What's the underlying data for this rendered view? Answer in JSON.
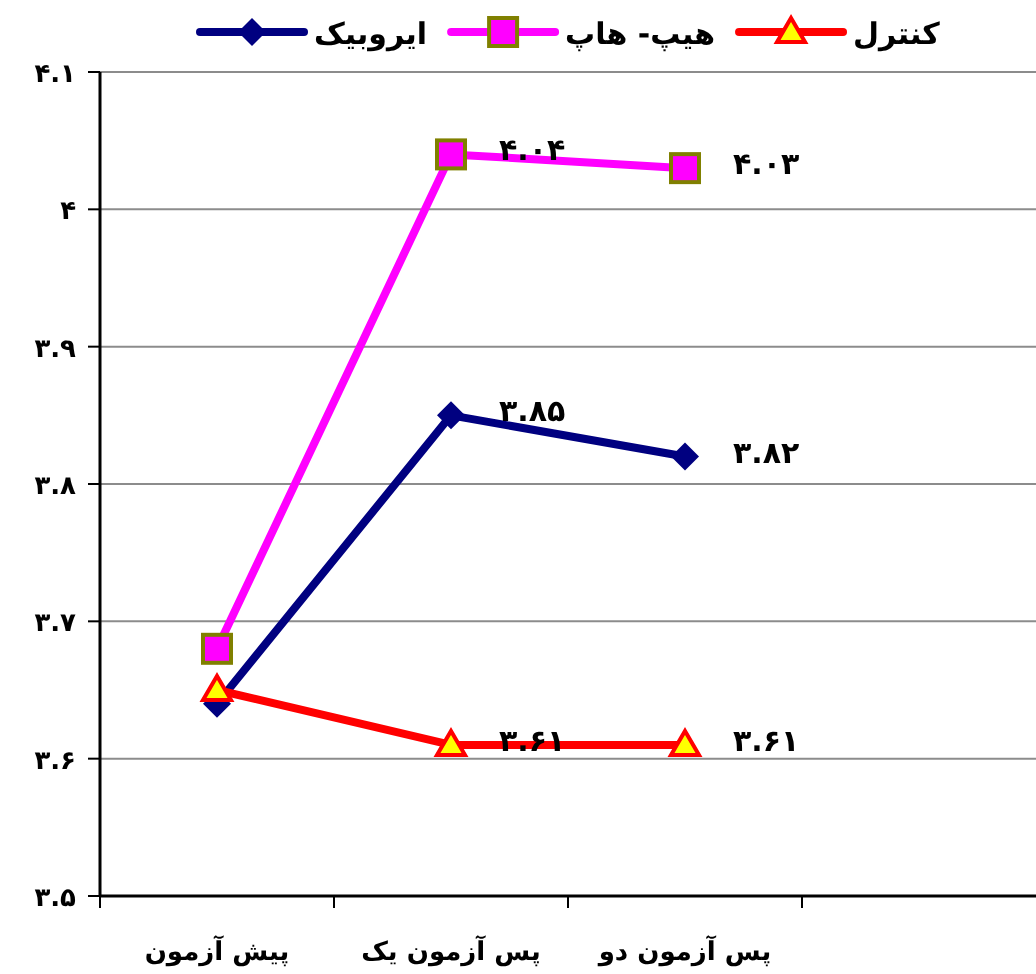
{
  "chart_data": {
    "type": "line",
    "categories": [
      "پیش آزمون",
      "پس آزمون یک",
      "پس آزمون دو",
      null
    ],
    "ylim": [
      3.5,
      4.1
    ],
    "yticks": [
      {
        "value": 3.5,
        "label": "۳.۵"
      },
      {
        "value": 3.6,
        "label": "۳.۶"
      },
      {
        "value": 3.7,
        "label": "۳.۷"
      },
      {
        "value": 3.8,
        "label": "۳.۸"
      },
      {
        "value": 3.9,
        "label": "۳.۹"
      },
      {
        "value": 4,
        "label": "۴"
      },
      {
        "value": 4.1,
        "label": "۴.۱"
      }
    ],
    "grid": "y",
    "legend": "top",
    "series": [
      {
        "name": "ایروبیک",
        "color": "#000080",
        "marker": "diamond",
        "values": [
          3.64,
          3.85,
          3.82,
          null
        ],
        "value_labels": [
          null,
          "۳.۸۵",
          "۳.۸۲",
          null
        ]
      },
      {
        "name": "هیپ- هاپ",
        "color": "#ff00ff",
        "marker": "square",
        "values": [
          3.68,
          4.04,
          4.03,
          null
        ],
        "value_labels": [
          null,
          "۴.۰۴",
          "۴.۰۳",
          null
        ]
      },
      {
        "name": "کنترل",
        "color": "#ff0000",
        "marker": "triangle",
        "values": [
          3.65,
          3.61,
          3.61,
          null
        ],
        "value_labels": [
          null,
          "۳.۶۱",
          "۳.۶۱",
          null
        ]
      }
    ]
  }
}
